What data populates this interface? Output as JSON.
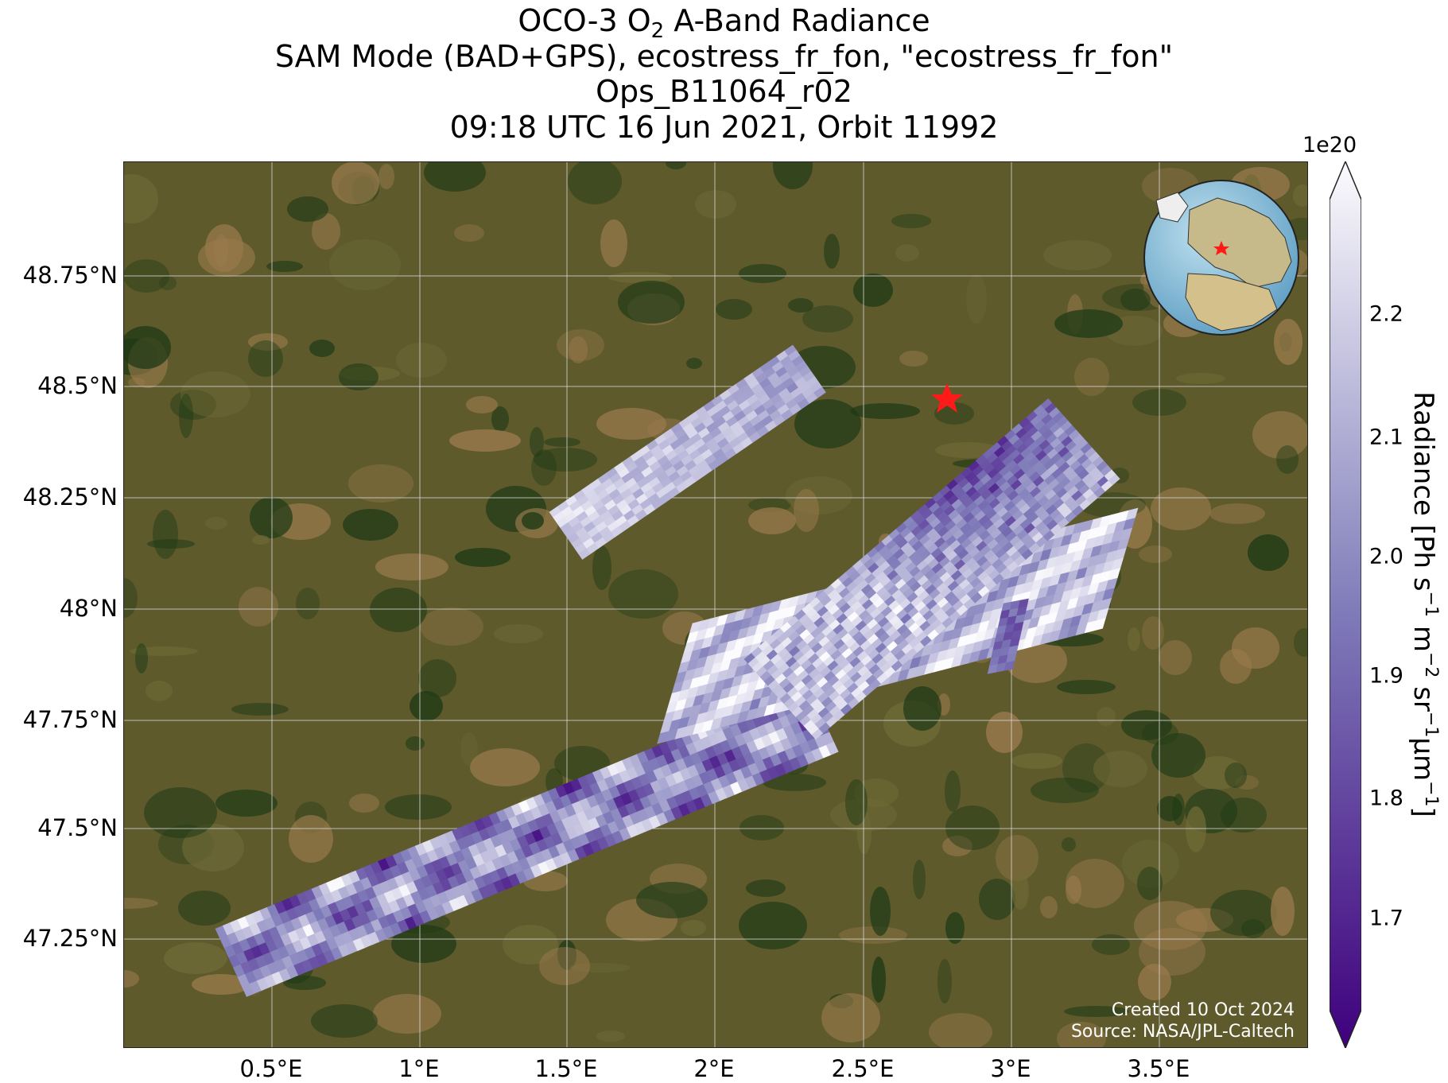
{
  "title": {
    "line1_prefix": "OCO-3 O",
    "line1_sub": "2",
    "line1_suffix": " A-Band Radiance",
    "line2": "SAM Mode (BAD+GPS), ecostress_fr_fon, \"ecostress_fr_fon\"",
    "line3": "Ops_B11064_r02",
    "line4": "09:18 UTC 16 Jun 2021, Orbit 11992"
  },
  "axes": {
    "lon_labels": [
      "0.5°E",
      "1°E",
      "1.5°E",
      "2°E",
      "2.5°E",
      "3°E",
      "3.5°E"
    ],
    "lat_labels": [
      "48.75°N",
      "48.5°N",
      "48.25°N",
      "48°N",
      "47.75°N",
      "47.5°N",
      "47.25°N"
    ]
  },
  "colorbar": {
    "multiplier": "1e20",
    "label_prefix": "Radiance [Ph s",
    "ticks": [
      "2.2",
      "2.1",
      "2.0",
      "1.9",
      "1.8",
      "1.7"
    ],
    "colors": {
      "low": "#3f007d",
      "mid": "#807dba",
      "high": "#fcfbfd"
    },
    "extend": "both"
  },
  "credit": {
    "line1": "Created 10 Oct 2024",
    "line2": "Source: NASA/JPL-Caltech"
  },
  "basemap_colors": {
    "farmland": "#5e5a2c",
    "forest": "#1f3a16",
    "bare": "#9a7a4c"
  },
  "target_marker": {
    "symbol": "star",
    "color": "#ff1a1a"
  }
}
